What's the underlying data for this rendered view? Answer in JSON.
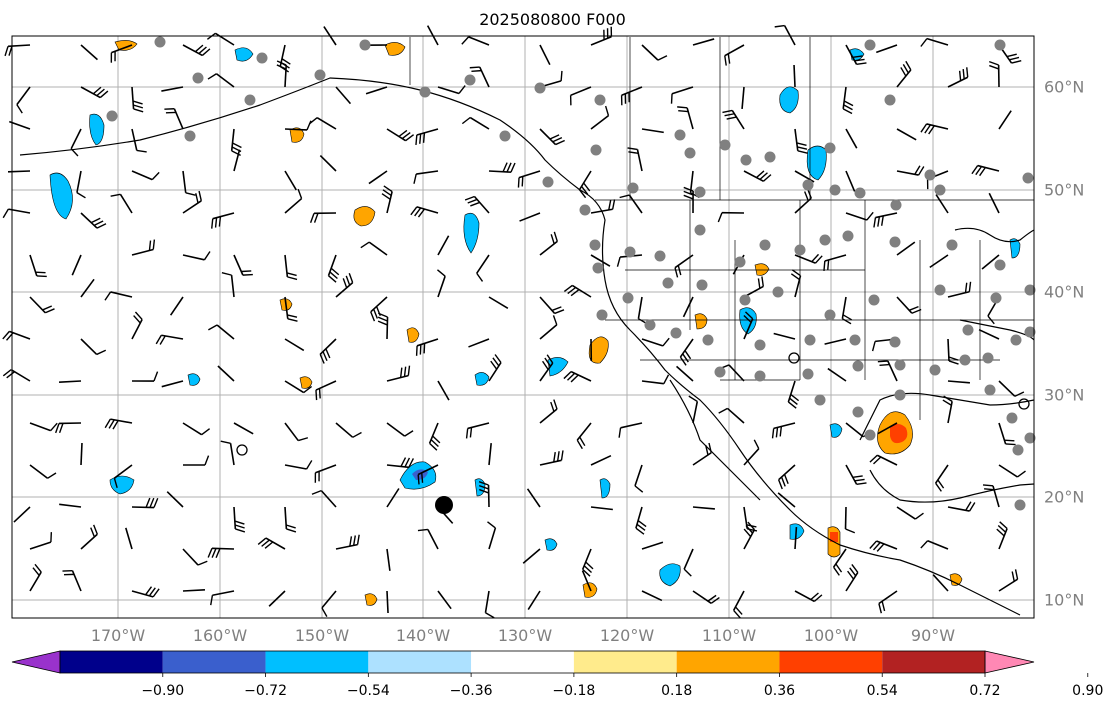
{
  "title": "2025080800 F000",
  "lon_labels": [
    "170°W",
    "160°W",
    "150°W",
    "140°W",
    "130°W",
    "120°W",
    "110°W",
    "100°W",
    "90°W"
  ],
  "lat_labels": [
    "60°N",
    "50°N",
    "40°N",
    "30°N",
    "20°N",
    "10°N"
  ],
  "colorbar": {
    "tick_labels": [
      "−0.90",
      "−0.72",
      "−0.54",
      "−0.36",
      "−0.18",
      "0.18",
      "0.36",
      "0.54",
      "0.72",
      "0.90"
    ],
    "colors": [
      "#9932CC",
      "#00008B",
      "#3A5FCD",
      "#00BFFF",
      "#ADE1FF",
      "#FFFFFF",
      "#FFEB8C",
      "#FFA500",
      "#FF4000",
      "#B22222",
      "#FF88B4"
    ]
  },
  "map_colors": {
    "gridline": "#b0b0b0",
    "coast": "#000000",
    "station": "#808080"
  }
}
